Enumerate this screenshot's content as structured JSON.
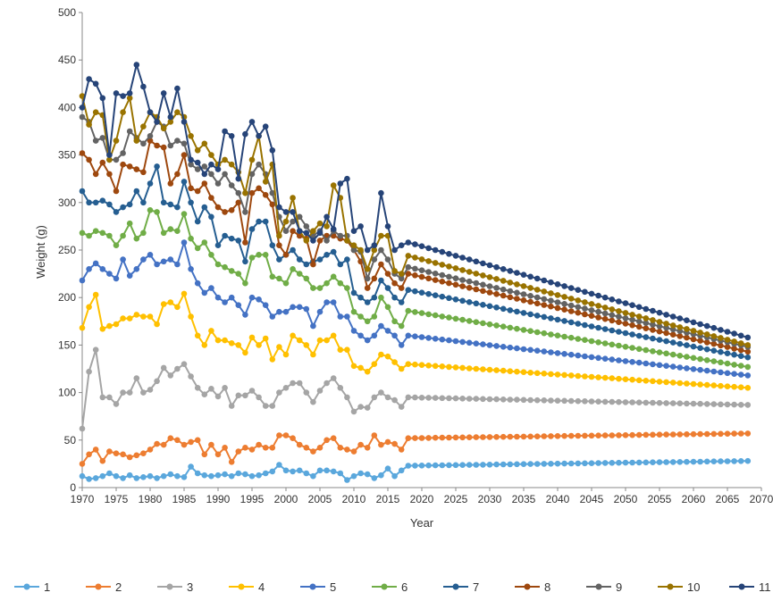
{
  "chart_data": {
    "type": "line",
    "title": "",
    "xlabel": "Year",
    "ylabel": "Weight (g)",
    "xlim": [
      1970,
      2070
    ],
    "ylim": [
      0,
      500
    ],
    "x_ticks": [
      "1970",
      "1975",
      "1980",
      "1985",
      "1990",
      "1995",
      "2000",
      "2005",
      "2010",
      "2015",
      "2020",
      "2025",
      "2030",
      "2035",
      "2040",
      "2045",
      "2050",
      "2055",
      "2060",
      "2065",
      "2070"
    ],
    "y_ticks": [
      "0",
      "50",
      "100",
      "150",
      "200",
      "250",
      "300",
      "350",
      "400",
      "450",
      "500"
    ],
    "grid": false,
    "legend_position": "bottom",
    "x": {
      "start": 1970,
      "end": 2068
    },
    "series": [
      {
        "name": "1",
        "color": "#5aa7dc",
        "hist": [
          12,
          9,
          10,
          12,
          15,
          12,
          10,
          13,
          10,
          11,
          12,
          10,
          12,
          14,
          12,
          11,
          22,
          15,
          13,
          12,
          13,
          14,
          12,
          15,
          14,
          12,
          13,
          15,
          17,
          24,
          18,
          17,
          18,
          15,
          12,
          18,
          18,
          17,
          15,
          8,
          12,
          15,
          14,
          10,
          13,
          20,
          12,
          18,
          23
        ],
        "end": 28
      },
      {
        "name": "2",
        "color": "#ed7d31",
        "hist": [
          25,
          35,
          40,
          28,
          38,
          36,
          35,
          32,
          34,
          36,
          40,
          46,
          45,
          52,
          50,
          45,
          48,
          50,
          35,
          45,
          35,
          42,
          27,
          38,
          42,
          40,
          45,
          42,
          42,
          55,
          55,
          52,
          45,
          42,
          38,
          42,
          50,
          52,
          42,
          40,
          38,
          45,
          42,
          55,
          45,
          48,
          46,
          40,
          52
        ],
        "end": 57
      },
      {
        "name": "3",
        "color": "#a5a5a5",
        "hist": [
          62,
          122,
          145,
          95,
          95,
          88,
          100,
          100,
          115,
          100,
          103,
          112,
          126,
          118,
          125,
          130,
          117,
          105,
          98,
          104,
          96,
          105,
          86,
          97,
          97,
          102,
          95,
          86,
          86,
          100,
          105,
          110,
          110,
          100,
          90,
          102,
          110,
          115,
          105,
          95,
          80,
          85,
          84,
          95,
          100,
          95,
          92,
          85,
          95
        ],
        "end": 87
      },
      {
        "name": "4",
        "color": "#ffc000",
        "hist": [
          168,
          190,
          203,
          167,
          170,
          172,
          178,
          178,
          182,
          180,
          180,
          172,
          193,
          195,
          190,
          204,
          180,
          160,
          150,
          165,
          155,
          155,
          152,
          150,
          142,
          158,
          150,
          157,
          135,
          148,
          140,
          160,
          155,
          150,
          140,
          155,
          155,
          160,
          145,
          145,
          128,
          126,
          122,
          130,
          140,
          138,
          132,
          125,
          130
        ],
        "end": 105
      },
      {
        "name": "5",
        "color": "#4472c4",
        "hist": [
          218,
          230,
          236,
          230,
          225,
          220,
          240,
          223,
          230,
          240,
          245,
          235,
          238,
          240,
          235,
          258,
          230,
          215,
          205,
          210,
          200,
          195,
          200,
          192,
          182,
          200,
          198,
          192,
          180,
          185,
          185,
          190,
          190,
          188,
          170,
          185,
          195,
          195,
          180,
          180,
          165,
          160,
          155,
          160,
          170,
          165,
          160,
          150,
          160
        ],
        "end": 118
      },
      {
        "name": "6",
        "color": "#70ad47",
        "hist": [
          268,
          265,
          270,
          268,
          265,
          255,
          265,
          278,
          262,
          268,
          292,
          290,
          268,
          272,
          270,
          288,
          262,
          252,
          258,
          245,
          235,
          232,
          228,
          225,
          215,
          242,
          245,
          245,
          222,
          220,
          215,
          230,
          225,
          220,
          210,
          210,
          215,
          222,
          215,
          210,
          185,
          180,
          175,
          180,
          200,
          190,
          175,
          170,
          186
        ],
        "end": 127
      },
      {
        "name": "7",
        "color": "#255e91",
        "hist": [
          312,
          300,
          300,
          302,
          298,
          290,
          295,
          298,
          312,
          300,
          320,
          338,
          300,
          298,
          295,
          322,
          300,
          280,
          295,
          285,
          255,
          265,
          262,
          260,
          238,
          272,
          280,
          280,
          255,
          240,
          245,
          250,
          240,
          235,
          238,
          240,
          245,
          248,
          235,
          240,
          205,
          200,
          195,
          200,
          218,
          210,
          200,
          195,
          208
        ],
        "end": 137
      },
      {
        "name": "8",
        "color": "#9e480e",
        "hist": [
          352,
          345,
          330,
          342,
          330,
          312,
          340,
          338,
          335,
          332,
          365,
          360,
          358,
          320,
          330,
          350,
          315,
          312,
          320,
          305,
          295,
          290,
          292,
          300,
          258,
          310,
          315,
          308,
          298,
          255,
          245,
          270,
          265,
          262,
          235,
          260,
          265,
          265,
          262,
          260,
          250,
          238,
          210,
          220,
          235,
          225,
          215,
          210,
          225
        ],
        "end": 143
      },
      {
        "name": "9",
        "color": "#636363",
        "hist": [
          390,
          385,
          365,
          368,
          345,
          345,
          352,
          375,
          368,
          362,
          370,
          385,
          380,
          360,
          365,
          362,
          340,
          335,
          338,
          330,
          320,
          330,
          318,
          310,
          290,
          330,
          340,
          330,
          310,
          285,
          270,
          280,
          285,
          275,
          265,
          270,
          260,
          270,
          265,
          265,
          250,
          248,
          220,
          240,
          250,
          240,
          225,
          220,
          232
        ],
        "end": 148
      },
      {
        "name": "10",
        "color": "#997300",
        "hist": [
          412,
          382,
          395,
          392,
          345,
          365,
          395,
          410,
          365,
          380,
          395,
          390,
          378,
          385,
          395,
          390,
          370,
          355,
          362,
          350,
          340,
          345,
          340,
          332,
          310,
          345,
          370,
          322,
          340,
          265,
          280,
          305,
          270,
          260,
          270,
          278,
          275,
          318,
          305,
          260,
          255,
          250,
          230,
          250,
          265,
          265,
          228,
          225,
          244
        ],
        "end": 150
      },
      {
        "name": "11",
        "color": "#264478",
        "hist": [
          400,
          430,
          425,
          410,
          350,
          415,
          412,
          415,
          445,
          422,
          395,
          385,
          415,
          390,
          420,
          385,
          345,
          342,
          330,
          340,
          335,
          375,
          370,
          325,
          372,
          385,
          370,
          380,
          355,
          295,
          290,
          290,
          270,
          268,
          260,
          268,
          285,
          272,
          320,
          325,
          270,
          275,
          250,
          255,
          310,
          275,
          250,
          255,
          258
        ],
        "end": 158
      }
    ]
  }
}
